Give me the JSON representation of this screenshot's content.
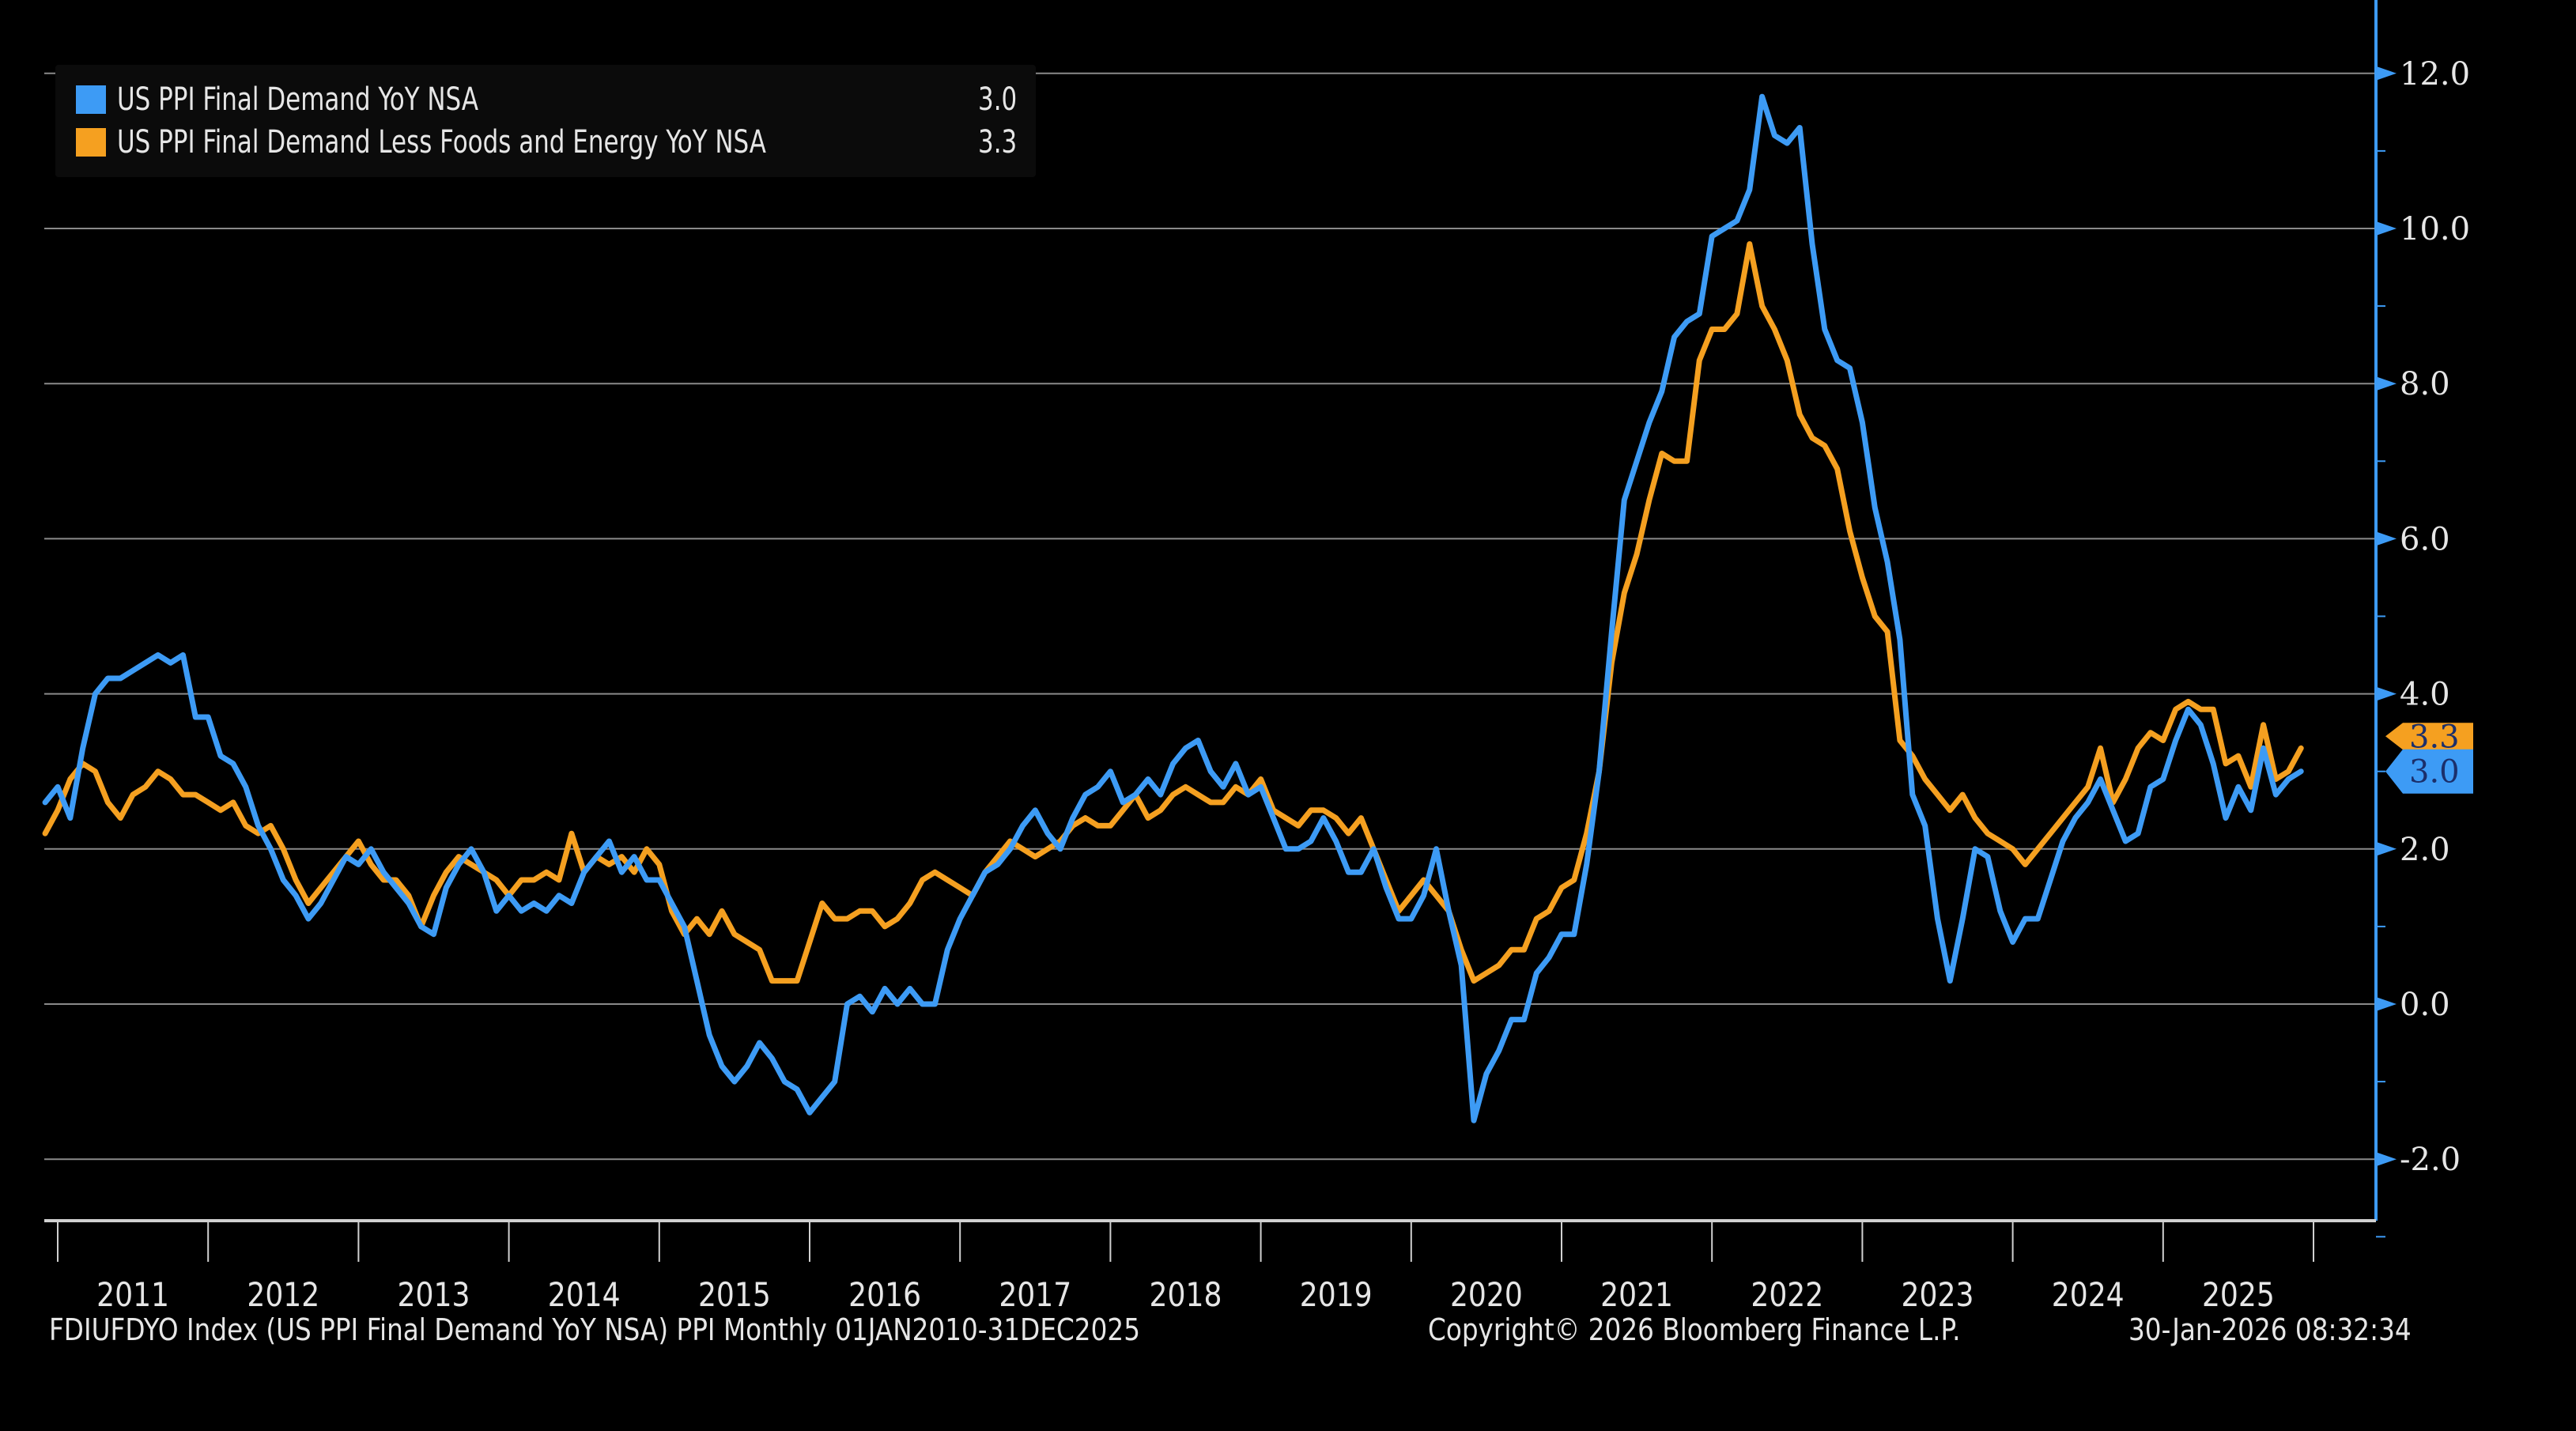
{
  "chart_data": {
    "type": "line",
    "title": "",
    "xlabel": "",
    "ylabel": "",
    "ylim": [
      -2.8,
      13.0
    ],
    "yticks": [
      "12.0",
      "10.0",
      "8.0",
      "6.0",
      "4.0",
      "2.0",
      "0.0",
      "-2.0"
    ],
    "ytick_values": [
      12,
      10,
      8,
      6,
      4,
      2,
      0,
      -2
    ],
    "x_start": "2010-12",
    "x_frequency": "monthly",
    "x_tick_labels": [
      "2011",
      "2012",
      "2013",
      "2014",
      "2015",
      "2016",
      "2017",
      "2018",
      "2019",
      "2020",
      "2021",
      "2022",
      "2023",
      "2024",
      "2025"
    ],
    "grid": true,
    "legend_position": "top-left",
    "series": [
      {
        "name": "US PPI Final Demand YoY NSA",
        "last_value": "3.0",
        "color": "#3d9bf5",
        "values": [
          2.6,
          2.8,
          2.4,
          3.3,
          4.0,
          4.2,
          4.2,
          4.3,
          4.4,
          4.5,
          4.4,
          4.5,
          3.7,
          3.7,
          3.2,
          3.1,
          2.8,
          2.3,
          2.0,
          1.6,
          1.4,
          1.1,
          1.3,
          1.6,
          1.9,
          1.8,
          2.0,
          1.7,
          1.5,
          1.3,
          1.0,
          0.9,
          1.5,
          1.8,
          2.0,
          1.7,
          1.2,
          1.4,
          1.2,
          1.3,
          1.2,
          1.4,
          1.3,
          1.7,
          1.9,
          2.1,
          1.7,
          1.9,
          1.6,
          1.6,
          1.3,
          1.0,
          0.3,
          -0.4,
          -0.8,
          -1.0,
          -0.8,
          -0.5,
          -0.7,
          -1.0,
          -1.1,
          -1.4,
          -1.2,
          -1.0,
          0.0,
          0.1,
          -0.1,
          0.2,
          0.0,
          0.2,
          0.0,
          0.0,
          0.7,
          1.1,
          1.4,
          1.7,
          1.8,
          2.0,
          2.3,
          2.5,
          2.2,
          2.0,
          2.4,
          2.7,
          2.8,
          3.0,
          2.6,
          2.7,
          2.9,
          2.7,
          3.1,
          3.3,
          3.4,
          3.0,
          2.8,
          3.1,
          2.7,
          2.8,
          2.4,
          2.0,
          2.0,
          2.1,
          2.4,
          2.1,
          1.7,
          1.7,
          2.0,
          1.5,
          1.1,
          1.1,
          1.4,
          2.0,
          1.2,
          0.5,
          -1.5,
          -0.9,
          -0.6,
          -0.2,
          -0.2,
          0.4,
          0.6,
          0.9,
          0.9,
          1.8,
          3.0,
          4.8,
          6.5,
          7.0,
          7.5,
          7.9,
          8.6,
          8.8,
          8.9,
          9.9,
          10.0,
          10.1,
          10.5,
          11.7,
          11.2,
          11.1,
          11.3,
          9.8,
          8.7,
          8.3,
          8.2,
          7.5,
          6.4,
          5.7,
          4.7,
          2.7,
          2.3,
          1.1,
          0.3,
          1.1,
          2.0,
          1.9,
          1.2,
          0.8,
          1.1,
          1.1,
          1.6,
          2.1,
          2.4,
          2.6,
          2.9,
          2.5,
          2.1,
          2.2,
          2.8,
          2.9,
          3.4,
          3.8,
          3.6,
          3.1,
          2.4,
          2.8,
          2.5,
          3.3,
          2.7,
          2.9,
          3.0
        ]
      },
      {
        "name": "US PPI Final Demand Less Foods and Energy YoY NSA",
        "last_value": "3.3",
        "color": "#f5a020",
        "values": [
          2.2,
          2.5,
          2.9,
          3.1,
          3.0,
          2.6,
          2.4,
          2.7,
          2.8,
          3.0,
          2.9,
          2.7,
          2.7,
          2.6,
          2.5,
          2.6,
          2.3,
          2.2,
          2.3,
          2.0,
          1.6,
          1.3,
          1.5,
          1.7,
          1.9,
          2.1,
          1.8,
          1.6,
          1.6,
          1.4,
          1.0,
          1.4,
          1.7,
          1.9,
          1.8,
          1.7,
          1.6,
          1.4,
          1.6,
          1.6,
          1.7,
          1.6,
          2.2,
          1.7,
          1.9,
          1.8,
          1.9,
          1.7,
          2.0,
          1.8,
          1.2,
          0.9,
          1.1,
          0.9,
          1.2,
          0.9,
          0.8,
          0.7,
          0.3,
          0.3,
          0.3,
          0.8,
          1.3,
          1.1,
          1.1,
          1.2,
          1.2,
          1.0,
          1.1,
          1.3,
          1.6,
          1.7,
          1.6,
          1.5,
          1.4,
          1.7,
          1.9,
          2.1,
          2.0,
          1.9,
          2.0,
          2.1,
          2.3,
          2.4,
          2.3,
          2.3,
          2.5,
          2.7,
          2.4,
          2.5,
          2.7,
          2.8,
          2.7,
          2.6,
          2.6,
          2.8,
          2.7,
          2.9,
          2.5,
          2.4,
          2.3,
          2.5,
          2.5,
          2.4,
          2.2,
          2.4,
          2.0,
          1.6,
          1.2,
          1.4,
          1.6,
          1.4,
          1.2,
          0.7,
          0.3,
          0.4,
          0.5,
          0.7,
          0.7,
          1.1,
          1.2,
          1.5,
          1.6,
          2.2,
          3.0,
          4.4,
          5.3,
          5.8,
          6.5,
          7.1,
          7.0,
          7.0,
          8.3,
          8.7,
          8.7,
          8.9,
          9.8,
          9.0,
          8.7,
          8.3,
          7.6,
          7.3,
          7.2,
          6.9,
          6.1,
          5.5,
          5.0,
          4.8,
          3.4,
          3.2,
          2.9,
          2.7,
          2.5,
          2.7,
          2.4,
          2.2,
          2.1,
          2.0,
          1.8,
          2.0,
          2.2,
          2.4,
          2.6,
          2.8,
          3.3,
          2.6,
          2.9,
          3.3,
          3.5,
          3.4,
          3.8,
          3.9,
          3.8,
          3.8,
          3.1,
          3.2,
          2.8,
          3.6,
          2.9,
          3.0,
          3.3
        ]
      }
    ]
  },
  "legend": [
    {
      "label": "US PPI Final Demand YoY NSA",
      "value": "3.0",
      "color": "#3d9bf5"
    },
    {
      "label": "US PPI Final Demand Less Foods and Energy YoY NSA",
      "value": "3.3",
      "color": "#f5a020"
    }
  ],
  "axis_value_tags": [
    {
      "text": "3.3",
      "color": "#f5a020"
    },
    {
      "text": "3.0",
      "color": "#3d9bf5"
    }
  ],
  "footer": {
    "source": "FDIUFDYO Index (US PPI Final Demand YoY NSA) PPI Monthly 01JAN2010-31DEC2025",
    "copyright": "Copyright© 2026 Bloomberg Finance L.P.",
    "timestamp": "30-Jan-2026 08:32:34"
  }
}
